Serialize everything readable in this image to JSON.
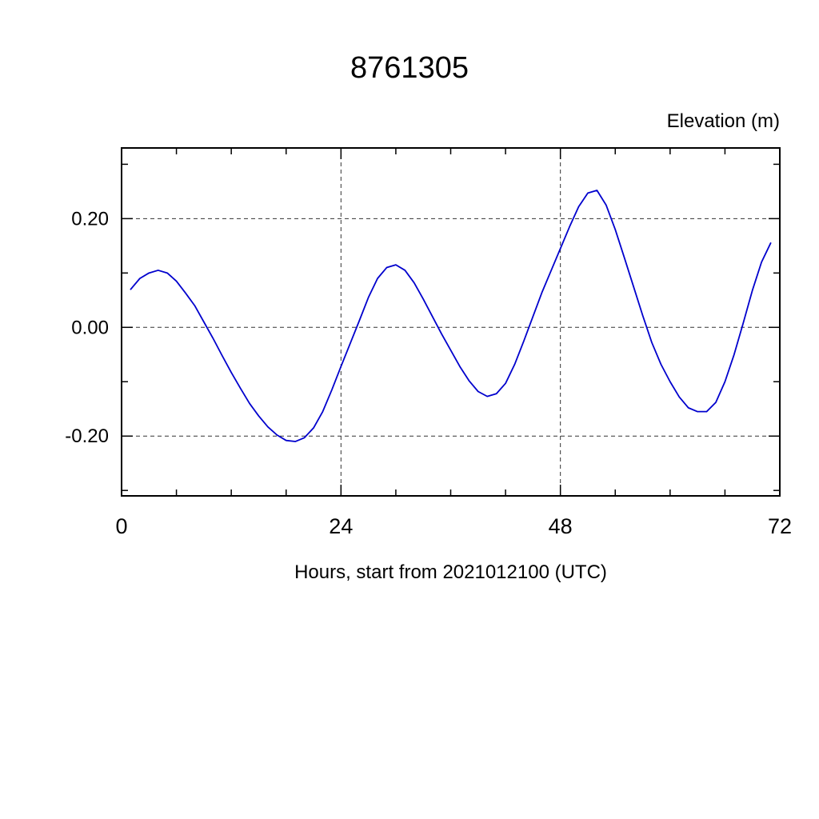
{
  "chart": {
    "title": "8761305",
    "ylabel": "Elevation (m)",
    "xlabel": "Hours, start from 2021012100 (UTC)"
  },
  "chart_data": {
    "type": "line",
    "title": "8761305",
    "xlabel": "Hours, start from 2021012100 (UTC)",
    "ylabel": "Elevation (m)",
    "xlim": [
      0,
      72
    ],
    "ylim": [
      -0.31,
      0.33
    ],
    "xticks_major": [
      0,
      24,
      48,
      72
    ],
    "xtick_labels": [
      "0",
      "24",
      "48",
      "72"
    ],
    "xticks_minor_step": 6,
    "yticks_major": [
      -0.2,
      0.0,
      0.2
    ],
    "ytick_labels": [
      "-0.20",
      "0.00",
      "0.20"
    ],
    "yticks_minor_step": 0.1,
    "xgrid": [
      24,
      48
    ],
    "ygrid": [
      -0.2,
      0.0,
      0.2
    ],
    "grid": true,
    "legend": "none",
    "line_color": "#0000cd",
    "series": [
      {
        "name": "elevation",
        "x": [
          1,
          2,
          3,
          4,
          5,
          6,
          7,
          8,
          9,
          10,
          11,
          12,
          13,
          14,
          15,
          16,
          17,
          18,
          19,
          20,
          21,
          22,
          23,
          24,
          25,
          26,
          27,
          28,
          29,
          30,
          31,
          32,
          33,
          34,
          35,
          36,
          37,
          38,
          39,
          40,
          41,
          42,
          43,
          44,
          45,
          46,
          47,
          48,
          49,
          50,
          51,
          52,
          53,
          54,
          55,
          56,
          57,
          58,
          59,
          60,
          61,
          62,
          63,
          64,
          65,
          66,
          67,
          68,
          69,
          70,
          71
        ],
        "y": [
          0.07,
          0.09,
          0.1,
          0.105,
          0.1,
          0.085,
          0.063,
          0.04,
          0.01,
          -0.02,
          -0.052,
          -0.083,
          -0.112,
          -0.14,
          -0.163,
          -0.183,
          -0.198,
          -0.208,
          -0.21,
          -0.203,
          -0.185,
          -0.155,
          -0.115,
          -0.072,
          -0.03,
          0.012,
          0.055,
          0.09,
          0.11,
          0.115,
          0.105,
          0.082,
          0.052,
          0.02,
          -0.012,
          -0.042,
          -0.072,
          -0.098,
          -0.118,
          -0.127,
          -0.122,
          -0.103,
          -0.068,
          -0.025,
          0.02,
          0.065,
          0.105,
          0.145,
          0.185,
          0.222,
          0.247,
          0.252,
          0.225,
          0.18,
          0.128,
          0.075,
          0.022,
          -0.028,
          -0.068,
          -0.1,
          -0.128,
          -0.148,
          -0.155,
          -0.155,
          -0.138,
          -0.1,
          -0.05,
          0.008,
          0.068,
          0.12,
          0.155
        ]
      }
    ]
  }
}
